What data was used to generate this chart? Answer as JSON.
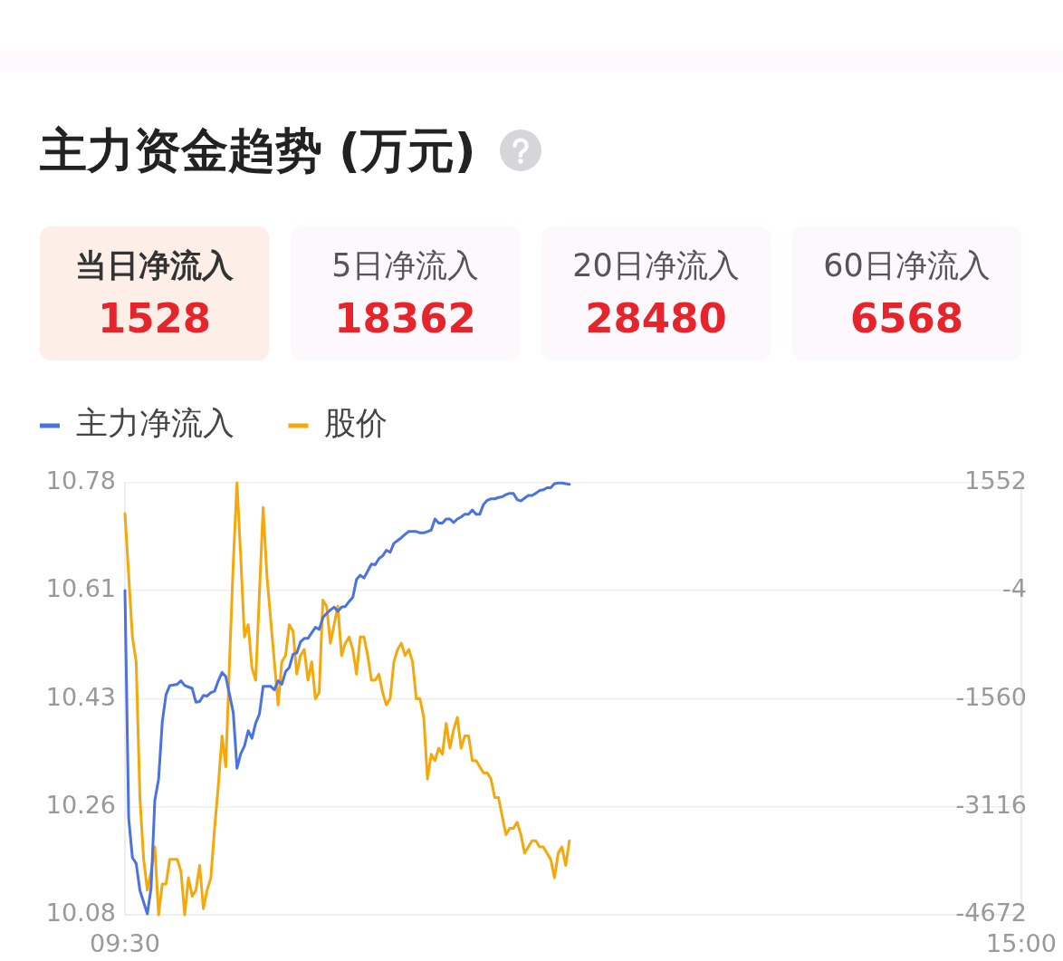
{
  "chart_data": [
    {
      "type": "other",
      "title": "主力资金趋势 (万元)",
      "categories": [
        "当日净流入",
        "5日净流入",
        "20日净流入",
        "60日净流入"
      ],
      "values": [
        1528,
        18362,
        28480,
        6568
      ],
      "colors": [
        "#fdeee7",
        "#fcf8fc",
        "#fcf8fc",
        "#fcf8fc"
      ],
      "data_labels": true
    },
    {
      "type": "line",
      "categories": [
        "09:30",
        null,
        null,
        null,
        null,
        null,
        null,
        null,
        null,
        null,
        null,
        null,
        null,
        null,
        null,
        null,
        null,
        null,
        null,
        null,
        null,
        null,
        null,
        null,
        null,
        null,
        null,
        null,
        null,
        null,
        null,
        null,
        null,
        null,
        null,
        null,
        null,
        null,
        null,
        null,
        null,
        null,
        null,
        null,
        null,
        null,
        null,
        null,
        null,
        null,
        null,
        null,
        null,
        null,
        null,
        null,
        null,
        null,
        null,
        null,
        null,
        null,
        null,
        null,
        null,
        null,
        null,
        null,
        null,
        null,
        null,
        null,
        null,
        null,
        null,
        null,
        null,
        null,
        null,
        null,
        null,
        null,
        null,
        null,
        null,
        null,
        null,
        null,
        null,
        null,
        null,
        null,
        null,
        null,
        null,
        null,
        null,
        null,
        null,
        null,
        null,
        null,
        null,
        null,
        null,
        null,
        null,
        null,
        null,
        null,
        null,
        null,
        null,
        null,
        null,
        null,
        null,
        null,
        null,
        null,
        null,
        null,
        null,
        null,
        null,
        null,
        null,
        null,
        null,
        null,
        null,
        null,
        null,
        null,
        null,
        null,
        null,
        null,
        null,
        null,
        null,
        null,
        null,
        null,
        null,
        null,
        null,
        null,
        null,
        null,
        null,
        null,
        null,
        null,
        null,
        null,
        null,
        null,
        null,
        null,
        null,
        null,
        null,
        null,
        null,
        null,
        null,
        null,
        null,
        null,
        null,
        null,
        null,
        null,
        null,
        null,
        null,
        null,
        null,
        null,
        null,
        null,
        null,
        null,
        null,
        null,
        null,
        null,
        null,
        null,
        null,
        null,
        null,
        null,
        null,
        null,
        null,
        null,
        null,
        null,
        null,
        null,
        null,
        null,
        null,
        null,
        null,
        null,
        null,
        null,
        null,
        null,
        null,
        null,
        null,
        null,
        null,
        null,
        null,
        null,
        null,
        null,
        null,
        null,
        null,
        null,
        null,
        null,
        null,
        null,
        null,
        null,
        null,
        null,
        null,
        null,
        null,
        null,
        null,
        null,
        "15:00"
      ],
      "series": [
        {
          "name": "主力净流入",
          "color": "#4a72e0",
          "axis": "y2",
          "values": [
            0,
            -3280,
            -3850,
            -3930,
            -4320,
            -4490,
            -4660,
            -4280,
            -3020,
            -2720,
            -1890,
            -1500,
            -1370,
            -1360,
            -1350,
            -1300,
            -1370,
            -1390,
            -1410,
            -1610,
            -1600,
            -1510,
            -1520,
            -1470,
            -1450,
            -1300,
            -1180,
            -1240,
            -1500,
            -1760,
            -2560,
            -2350,
            -2240,
            -2020,
            -2130,
            -1910,
            -1780,
            -1380,
            -1380,
            -1380,
            -1430,
            -1300,
            -1350,
            -1170,
            -1110,
            -920,
            -900,
            -740,
            -690,
            -690,
            -610,
            -530,
            -560,
            -390,
            -330,
            -280,
            -240,
            -300,
            -240,
            -230,
            -160,
            -100,
            160,
            220,
            180,
            280,
            380,
            370,
            460,
            500,
            580,
            550,
            680,
            720,
            760,
            810,
            850,
            850,
            850,
            830,
            830,
            850,
            870,
            1030,
            970,
            970,
            1030,
            1030,
            980,
            1030,
            1060,
            1100,
            1100,
            1160,
            1100,
            1100,
            1240,
            1300,
            1320,
            1320,
            1340,
            1350,
            1380,
            1400,
            1400,
            1310,
            1290,
            1330,
            1370,
            1370,
            1400,
            1440,
            1450,
            1480,
            1480,
            1540,
            1550,
            1550,
            1540,
            1530,
            null,
            null,
            null,
            null,
            null,
            null,
            null,
            null,
            null,
            null,
            null,
            null,
            null,
            null,
            null,
            null,
            null,
            null,
            null,
            null,
            null,
            null,
            null,
            null,
            null,
            null,
            null,
            null,
            null,
            null,
            null,
            null,
            null,
            null,
            null,
            null,
            null,
            null,
            null,
            null,
            null,
            null,
            null,
            null,
            null,
            null,
            null,
            null,
            null,
            null,
            null,
            null,
            null,
            null,
            null,
            null,
            null,
            null,
            null,
            null,
            null,
            null,
            null,
            null,
            null,
            null,
            null,
            null,
            null,
            null,
            null,
            null,
            null,
            null,
            null,
            null,
            null,
            null,
            null,
            null,
            null,
            null,
            null,
            null,
            null,
            null,
            null,
            null,
            null,
            null,
            null,
            null,
            null,
            null,
            null,
            null,
            null,
            null,
            null,
            null,
            null,
            null,
            null,
            null,
            null,
            null,
            null,
            null,
            null,
            null,
            null,
            null,
            null,
            null,
            null,
            null,
            null,
            null,
            null,
            null,
            null
          ]
        },
        {
          "name": "股价",
          "color": "#f5a80c",
          "values": [
            10.73,
            10.63,
            10.53,
            10.49,
            10.27,
            10.17,
            10.12,
            10.15,
            10.19,
            10.08,
            10.13,
            10.13,
            10.17,
            10.17,
            10.17,
            10.15,
            10.08,
            10.14,
            10.11,
            10.12,
            10.16,
            10.09,
            10.12,
            10.14,
            10.22,
            10.29,
            10.37,
            10.32,
            10.49,
            10.65,
            10.78,
            10.66,
            10.53,
            10.55,
            10.48,
            10.46,
            10.6,
            10.74,
            10.63,
            10.56,
            10.49,
            10.42,
            10.49,
            10.5,
            10.55,
            10.54,
            10.47,
            10.5,
            10.51,
            10.46,
            10.49,
            10.43,
            10.44,
            10.59,
            10.58,
            10.52,
            10.55,
            10.58,
            10.5,
            10.52,
            10.53,
            10.51,
            10.47,
            10.53,
            10.53,
            10.5,
            10.46,
            10.46,
            10.47,
            10.44,
            10.42,
            10.43,
            10.49,
            10.51,
            10.52,
            10.5,
            10.51,
            10.49,
            10.43,
            10.43,
            10.4,
            10.3,
            10.34,
            10.33,
            10.35,
            10.34,
            10.39,
            10.35,
            10.38,
            10.4,
            10.35,
            10.37,
            10.37,
            10.33,
            10.33,
            10.32,
            10.31,
            10.31,
            10.3,
            10.27,
            10.27,
            10.24,
            10.21,
            10.22,
            10.22,
            10.23,
            10.21,
            10.18,
            10.19,
            10.2,
            10.2,
            10.19,
            10.19,
            10.18,
            10.17,
            10.14,
            10.18,
            10.19,
            10.16,
            10.2,
            null,
            null,
            null,
            null,
            null,
            null,
            null,
            null,
            null,
            null,
            null,
            null,
            null,
            null,
            null,
            null,
            null,
            null,
            null,
            null,
            null,
            null,
            null,
            null,
            null,
            null,
            null,
            null,
            null,
            null,
            null,
            null,
            null,
            null,
            null,
            null,
            null,
            null,
            null,
            null,
            null,
            null,
            null,
            null,
            null,
            null,
            null,
            null,
            null,
            null,
            null,
            null,
            null,
            null,
            null,
            null,
            null,
            null,
            null,
            null,
            null,
            null,
            null,
            null,
            null,
            null,
            null,
            null,
            null,
            null,
            null,
            null,
            null,
            null,
            null,
            null,
            null,
            null,
            null,
            null,
            null,
            null,
            null,
            null,
            null,
            null,
            null,
            null,
            null,
            null,
            null,
            null,
            null,
            null,
            null,
            null,
            null,
            null,
            null,
            null,
            null,
            null,
            null,
            null,
            null,
            null,
            null,
            null,
            null,
            null,
            null,
            null,
            null,
            null,
            null,
            null,
            null,
            null,
            null,
            null,
            null
          ]
        }
      ],
      "ylim": [
        10.08,
        10.78
      ],
      "yticks": [
        10.08,
        {
          "value": 10.255,
          "label": "10.26"
        },
        10.43,
        {
          "value": 10.605,
          "label": "10.61"
        },
        10.78
      ],
      "y2lim": [
        -4672,
        1552
      ],
      "y2ticks": [
        -4672,
        -3116,
        -1560,
        -4,
        1552
      ],
      "grid": "y",
      "legend": "top left"
    }
  ]
}
